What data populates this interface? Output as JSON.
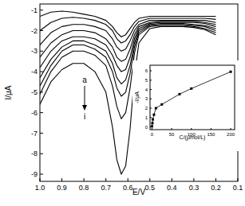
{
  "chart_data": [
    {
      "type": "line",
      "xlabel": "E/V",
      "ylabel": "I/μA",
      "color": "#000000",
      "x": [
        1.0,
        0.95,
        0.9,
        0.85,
        0.8,
        0.75,
        0.7,
        0.67,
        0.65,
        0.63,
        0.61,
        0.59,
        0.57,
        0.55,
        0.5,
        0.45,
        0.4,
        0.35,
        0.3,
        0.25,
        0.2
      ],
      "series": [
        {
          "values": [
            -1.3,
            -1.1,
            -1.05,
            -1.1,
            -1.2,
            -1.3,
            -1.5,
            -1.8,
            -2.1,
            -2.3,
            -2.2,
            -1.9,
            -1.6,
            -1.4,
            -1.3,
            -1.3,
            -1.3,
            -1.3,
            -1.3,
            -1.3,
            -1.3
          ]
        },
        {
          "values": [
            -2.0,
            -1.6,
            -1.4,
            -1.35,
            -1.4,
            -1.5,
            -1.7,
            -2.0,
            -2.4,
            -2.6,
            -2.5,
            -2.2,
            -1.8,
            -1.55,
            -1.4,
            -1.4,
            -1.4,
            -1.4,
            -1.4,
            -1.4,
            -1.45
          ]
        },
        {
          "values": [
            -2.7,
            -2.1,
            -1.8,
            -1.7,
            -1.7,
            -1.8,
            -2.0,
            -2.4,
            -2.8,
            -3.0,
            -2.9,
            -2.5,
            -2.0,
            -1.7,
            -1.5,
            -1.5,
            -1.5,
            -1.5,
            -1.5,
            -1.5,
            -1.6
          ]
        },
        {
          "values": [
            -3.3,
            -2.6,
            -2.2,
            -2.0,
            -2.0,
            -2.1,
            -2.4,
            -2.8,
            -3.3,
            -3.5,
            -3.4,
            -2.9,
            -2.2,
            -1.8,
            -1.6,
            -1.55,
            -1.55,
            -1.55,
            -1.55,
            -1.6,
            -1.7
          ]
        },
        {
          "values": [
            -3.8,
            -3.0,
            -2.5,
            -2.3,
            -2.3,
            -2.4,
            -2.7,
            -3.2,
            -3.7,
            -4.0,
            -3.9,
            -3.3,
            -2.4,
            -1.9,
            -1.65,
            -1.6,
            -1.6,
            -1.6,
            -1.6,
            -1.65,
            -1.8
          ]
        },
        {
          "values": [
            -4.3,
            -3.4,
            -2.8,
            -2.5,
            -2.5,
            -2.7,
            -3.0,
            -3.6,
            -4.3,
            -4.6,
            -4.4,
            -3.7,
            -2.6,
            -2.0,
            -1.7,
            -1.65,
            -1.65,
            -1.65,
            -1.7,
            -1.75,
            -1.9
          ]
        },
        {
          "values": [
            -4.7,
            -3.7,
            -3.0,
            -2.7,
            -2.7,
            -2.9,
            -3.3,
            -4.0,
            -4.8,
            -5.2,
            -5.0,
            -4.1,
            -2.8,
            -2.1,
            -1.75,
            -1.7,
            -1.7,
            -1.7,
            -1.75,
            -1.8,
            -2.0
          ]
        },
        {
          "values": [
            -5.1,
            -4.0,
            -3.3,
            -3.0,
            -3.0,
            -3.2,
            -3.7,
            -4.7,
            -5.7,
            -6.3,
            -6.0,
            -4.8,
            -3.1,
            -2.2,
            -1.8,
            -1.75,
            -1.75,
            -1.75,
            -1.8,
            -1.9,
            -2.1
          ]
        },
        {
          "values": [
            -5.6,
            -4.5,
            -3.9,
            -3.6,
            -3.6,
            -4.0,
            -5.0,
            -6.7,
            -8.3,
            -9.0,
            -8.6,
            -6.8,
            -4.2,
            -2.6,
            -1.9,
            -1.8,
            -1.8,
            -1.8,
            -1.85,
            -1.95,
            -2.2
          ]
        }
      ],
      "xlim": [
        1.0,
        0.1
      ],
      "xticks": [
        {
          "value": 1,
          "label": "1.0"
        },
        0.9,
        0.8,
        0.7,
        0.6,
        0.5,
        0.4,
        0.3,
        0.2,
        0.1
      ],
      "ylim": [
        -9.35,
        -0.7
      ],
      "yticks": [
        -1,
        -2,
        -3,
        -4,
        -5,
        -6,
        -7,
        -8,
        -9
      ],
      "annotations": [
        "a",
        "i"
      ]
    },
    {
      "type": "line",
      "xlabel": "C/(μmol/L)",
      "ylabel": "-I/μA",
      "color": "#000000",
      "marker": "square",
      "x": [
        0,
        1,
        2,
        5,
        10,
        25,
        70,
        100,
        200
      ],
      "values": [
        0.05,
        0.4,
        0.8,
        1.3,
        2.0,
        2.4,
        3.5,
        4.1,
        5.9
      ],
      "xlim": [
        -5,
        210
      ],
      "ylim": [
        -0.3,
        6.6
      ],
      "xticks": [
        0,
        50,
        100,
        150,
        200
      ],
      "yticks": [
        0,
        1,
        2,
        3,
        4,
        5,
        6
      ]
    }
  ]
}
